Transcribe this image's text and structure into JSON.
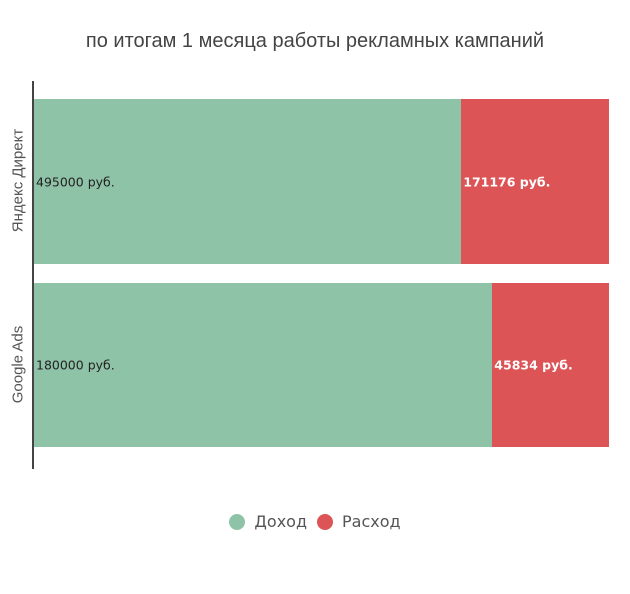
{
  "chart_data": {
    "type": "bar",
    "orientation": "horizontal",
    "stacked": true,
    "normalized_percent": true,
    "title": "по итогам 1 месяца работы рекламных кампаний",
    "xlabel": "",
    "ylabel": "",
    "categories": [
      "Яндекс Директ",
      "Google Ads"
    ],
    "series": [
      {
        "name": "Доход",
        "color": "#8fc3a8",
        "values": [
          495000,
          180000
        ],
        "labels": [
          "495000 руб.",
          "180000 руб."
        ]
      },
      {
        "name": "Расход",
        "color": "#dc5456",
        "values": [
          171176,
          45834
        ],
        "labels": [
          "171176 руб.",
          "45834 руб."
        ]
      }
    ],
    "grid": false,
    "legend_position": "bottom"
  },
  "title": "по итогам 1 месяца работы рекламных кампаний",
  "bars": [
    {
      "category": "Яндекс Директ",
      "income_label": "495000 руб.",
      "expense_label": "171176 руб.",
      "income": 495000,
      "expense": 171176
    },
    {
      "category": "Google Ads",
      "income_label": "180000 руб.",
      "expense_label": "45834 руб.",
      "income": 180000,
      "expense": 45834
    }
  ],
  "legend": [
    {
      "label": "Доход",
      "color": "#8fc3a8"
    },
    {
      "label": "Расход",
      "color": "#dc5456"
    }
  ]
}
